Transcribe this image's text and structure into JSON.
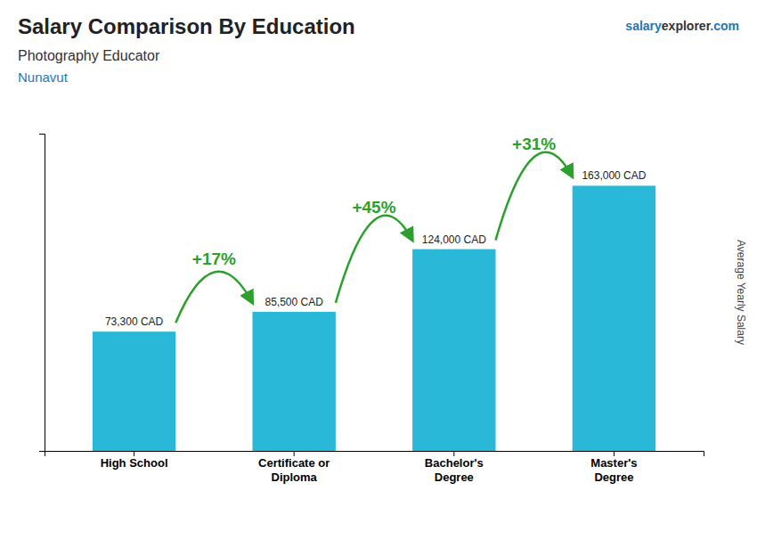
{
  "chart_data": {
    "type": "bar",
    "title": "Salary Comparison By Education",
    "subtitle": "Photography Educator",
    "location": "Nunavut",
    "website": [
      "salary",
      "explorer",
      ".com"
    ],
    "ylabel": "Average Yearly Salary",
    "categories": [
      "High School",
      "Certificate or\nDiploma",
      "Bachelor's\nDegree",
      "Master's\nDegree"
    ],
    "values": [
      73300,
      85500,
      124000,
      163000
    ],
    "value_labels": [
      "73,300 CAD",
      "85,500 CAD",
      "124,000 CAD",
      "163,000 CAD"
    ],
    "data_labels": true,
    "annotations": [
      "+17%",
      "+45%",
      "+31%"
    ],
    "color": "#29b8d8",
    "ylim": [
      0,
      195000
    ],
    "yticks": [],
    "tick_labels": "x",
    "grid": false
  }
}
